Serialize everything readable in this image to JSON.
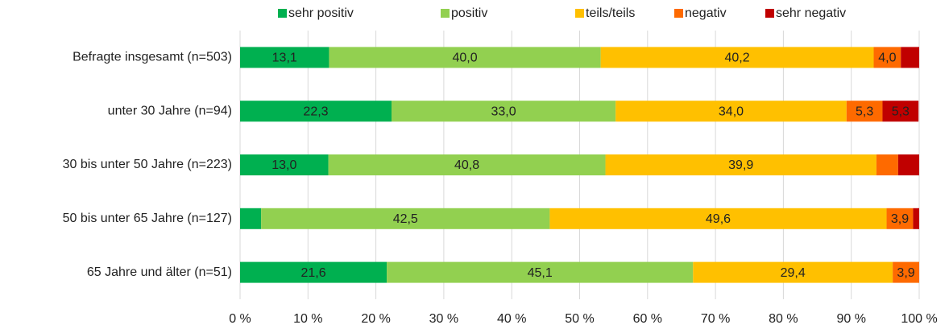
{
  "chart_data": {
    "type": "stacked-barh",
    "categories": [
      "Befragte insgesamt (n=503)",
      "unter 30 Jahre (n=94)",
      "30 bis unter 50 Jahre (n=223)",
      "50 bis unter 65 Jahre (n=127)",
      "65 Jahre und älter (n=51)"
    ],
    "series": [
      {
        "name": "sehr positiv",
        "color": "#00b050",
        "values": [
          13.1,
          22.3,
          13.0,
          3.1,
          21.6
        ],
        "value_labels": [
          "13,1",
          "22,3",
          "13,0",
          null,
          "21,6"
        ]
      },
      {
        "name": "positiv",
        "color": "#92d050",
        "values": [
          40.0,
          33.0,
          40.8,
          42.5,
          45.1
        ],
        "value_labels": [
          "40,0",
          "33,0",
          "40,8",
          "42,5",
          "45,1"
        ]
      },
      {
        "name": "teils/teils",
        "color": "#ffc000",
        "values": [
          40.2,
          34.0,
          39.9,
          49.6,
          29.4
        ],
        "value_labels": [
          "40,2",
          "34,0",
          "39,9",
          "49,6",
          "29,4"
        ]
      },
      {
        "name": "negativ",
        "color": "#fe6a00",
        "values": [
          4.0,
          5.3,
          3.2,
          3.9,
          3.9
        ],
        "value_labels": [
          "4,0",
          "5,3",
          null,
          "3,9",
          "3,9"
        ]
      },
      {
        "name": "sehr negativ",
        "color": "#c00000",
        "values": [
          2.7,
          5.3,
          3.1,
          0.9,
          0
        ],
        "value_labels": [
          null,
          "5,3",
          null,
          null,
          null
        ]
      }
    ],
    "xlim": [
      0,
      100
    ],
    "xticks": [
      {
        "value": 0,
        "label": "0 %"
      },
      {
        "value": 10,
        "label": "10 %"
      },
      {
        "value": 20,
        "label": "20 %"
      },
      {
        "value": 30,
        "label": "30 %"
      },
      {
        "value": 40,
        "label": "40 %"
      },
      {
        "value": 50,
        "label": "50 %"
      },
      {
        "value": 60,
        "label": "60 %"
      },
      {
        "value": 70,
        "label": "70 %"
      },
      {
        "value": 80,
        "label": "80 %"
      },
      {
        "value": 90,
        "label": "90 %"
      },
      {
        "value": 100,
        "label": "100 %"
      }
    ],
    "grid": true,
    "legend": "top"
  }
}
